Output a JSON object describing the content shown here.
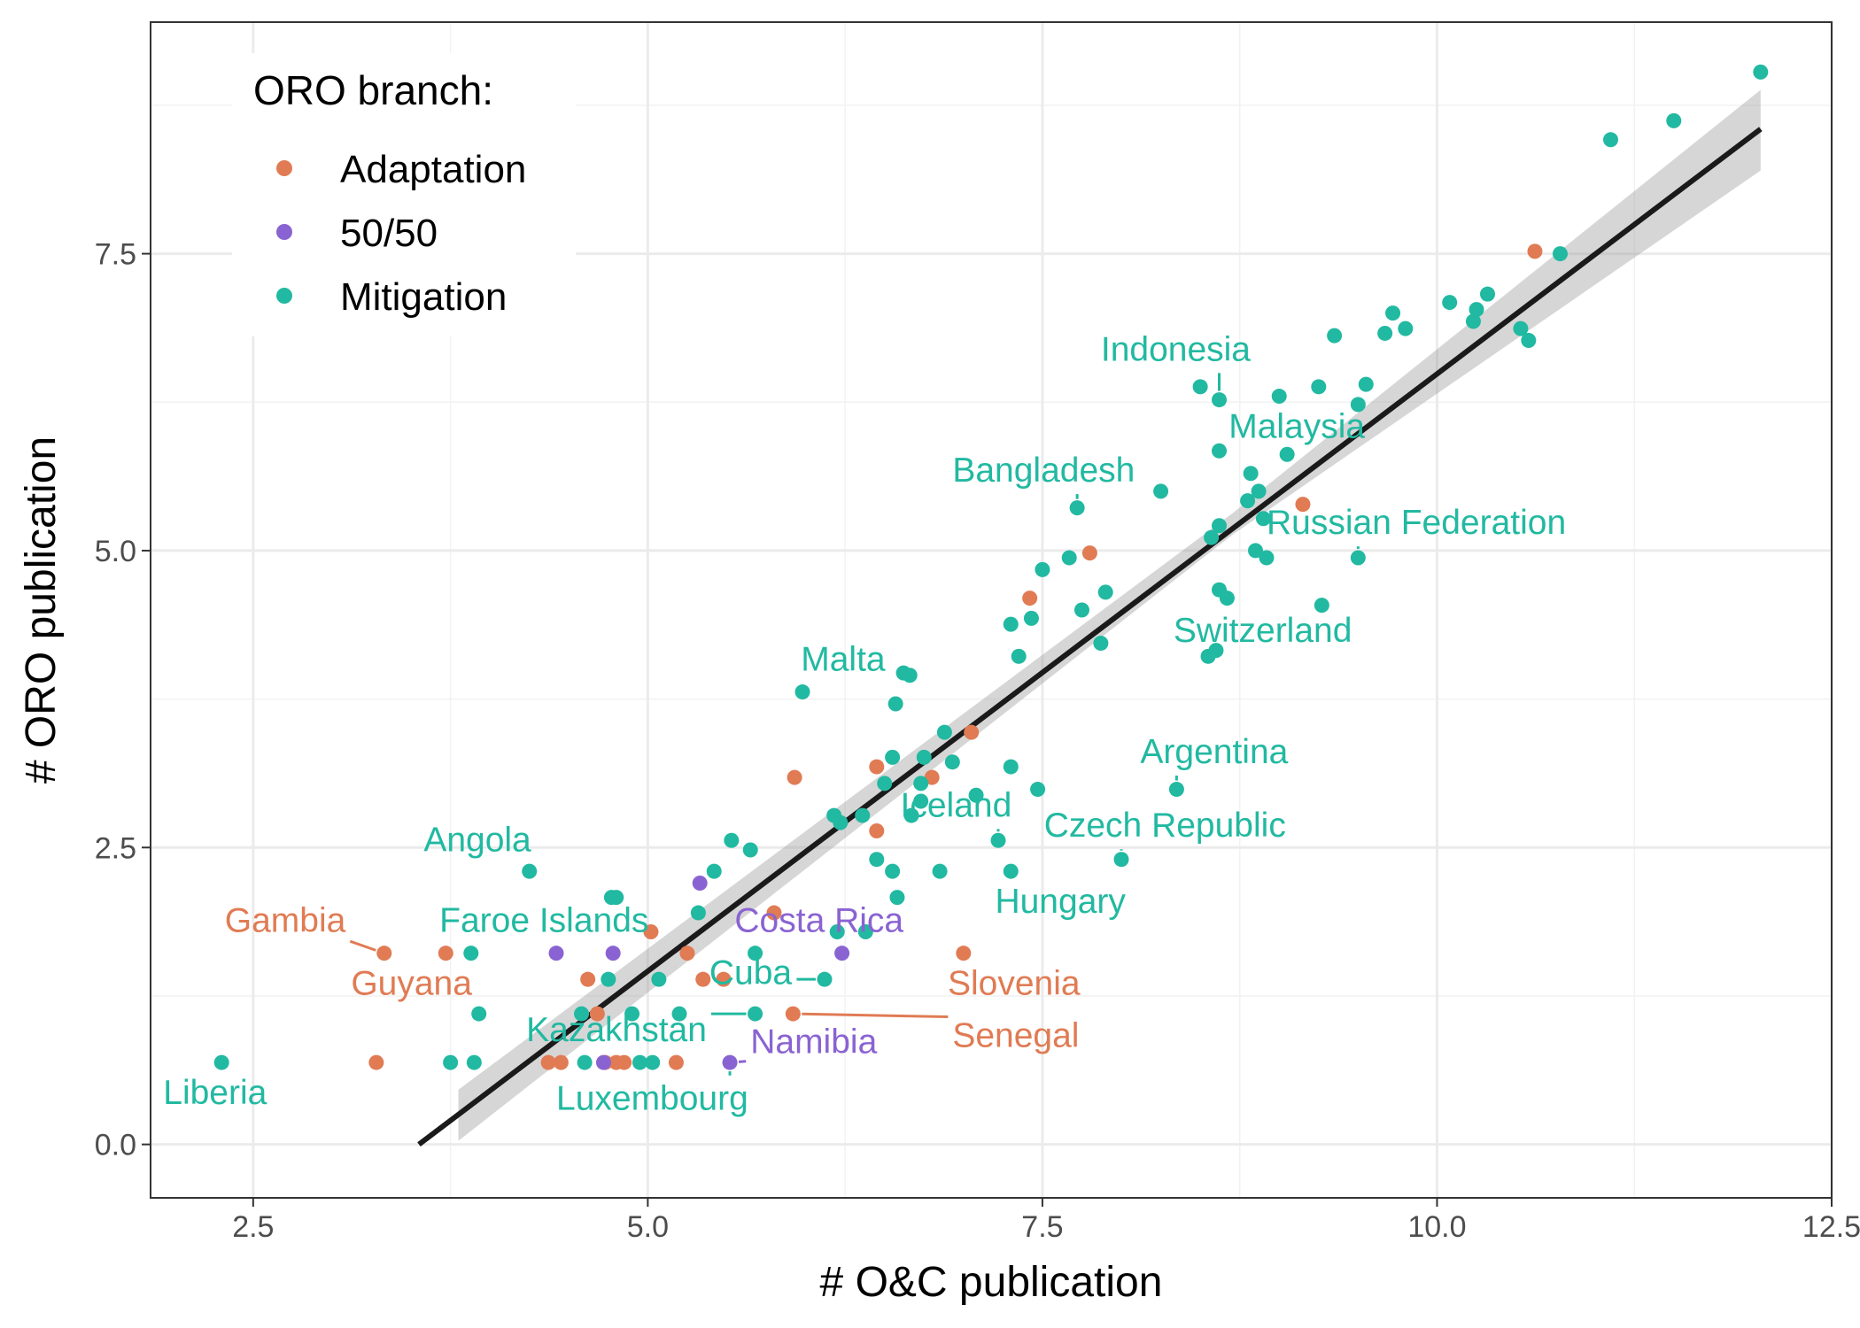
{
  "chart_data": {
    "type": "scatter",
    "xlabel": "# O&C publication",
    "ylabel": "# ORO publication",
    "xlim": [
      1.85,
      12.5
    ],
    "ylim": [
      -0.45,
      9.45
    ],
    "x_ticks": [
      {
        "v": 2.5,
        "label": "2.5"
      },
      {
        "v": 5.0,
        "label": "5.0"
      },
      {
        "v": 7.5,
        "label": "7.5"
      },
      {
        "v": 10.0,
        "label": "10.0"
      },
      {
        "v": 12.5,
        "label": "12.5"
      }
    ],
    "y_ticks": [
      {
        "v": 0.0,
        "label": "0.0"
      },
      {
        "v": 2.5,
        "label": "2.5"
      },
      {
        "v": 5.0,
        "label": "5.0"
      },
      {
        "v": 7.5,
        "label": "7.5"
      }
    ],
    "x_minor": [
      3.75,
      6.25,
      8.75,
      11.25
    ],
    "y_minor": [
      1.25,
      3.75,
      6.25,
      8.75
    ],
    "grid": true,
    "legend": {
      "title": "ORO branch:",
      "position": "top-left",
      "entries": [
        {
          "label": "Adaptation",
          "color": "#E07B54"
        },
        {
          "label": "50/50",
          "color": "#8A63D2"
        },
        {
          "label": "Mitigation",
          "color": "#21B9A1"
        }
      ]
    },
    "fit": {
      "type": "linear",
      "x_range": [
        3.55,
        12.05
      ],
      "y_range": [
        0.0,
        8.55
      ],
      "band": [
        [
          3.8,
          0.03,
          0.46
        ],
        [
          8.7,
          5.13,
          5.31
        ],
        [
          12.05,
          8.2,
          8.88
        ]
      ]
    },
    "series": [
      {
        "name": "Adaptation",
        "color": "#E07B54",
        "points": [
          [
            3.28,
            0.69
          ],
          [
            3.33,
            1.61
          ],
          [
            3.72,
            1.61
          ],
          [
            4.37,
            0.69
          ],
          [
            4.45,
            0.69
          ],
          [
            4.62,
            1.39
          ],
          [
            4.68,
            1.1
          ],
          [
            4.73,
            0.69
          ],
          [
            4.8,
            0.69
          ],
          [
            4.85,
            0.69
          ],
          [
            5.02,
            1.79
          ],
          [
            5.18,
            0.69
          ],
          [
            5.25,
            1.61
          ],
          [
            5.35,
            1.39
          ],
          [
            5.48,
            1.39
          ],
          [
            5.8,
            1.95
          ],
          [
            5.92,
            1.1
          ],
          [
            5.93,
            3.09
          ],
          [
            6.45,
            3.18
          ],
          [
            6.45,
            2.64
          ],
          [
            6.8,
            3.09
          ],
          [
            7.0,
            1.61
          ],
          [
            7.05,
            3.47
          ],
          [
            7.42,
            4.6
          ],
          [
            7.8,
            4.98
          ],
          [
            9.15,
            5.39
          ],
          [
            10.62,
            7.52
          ]
        ]
      },
      {
        "name": "50/50",
        "color": "#8A63D2",
        "points": [
          [
            4.42,
            1.61
          ],
          [
            4.72,
            0.69
          ],
          [
            4.78,
            1.61
          ],
          [
            5.33,
            2.2
          ],
          [
            5.52,
            0.69
          ],
          [
            6.23,
            1.61
          ]
        ]
      },
      {
        "name": "Mitigation",
        "color": "#21B9A1",
        "points": [
          [
            2.3,
            0.69
          ],
          [
            3.75,
            0.69
          ],
          [
            3.88,
            1.61
          ],
          [
            3.9,
            0.69
          ],
          [
            3.93,
            1.1
          ],
          [
            4.25,
            2.3
          ],
          [
            4.58,
            1.1
          ],
          [
            4.6,
            0.69
          ],
          [
            4.75,
            1.39
          ],
          [
            4.77,
            2.08
          ],
          [
            4.8,
            2.08
          ],
          [
            4.9,
            1.1
          ],
          [
            4.95,
            0.69
          ],
          [
            5.03,
            0.69
          ],
          [
            5.07,
            1.39
          ],
          [
            5.2,
            1.1
          ],
          [
            5.32,
            1.95
          ],
          [
            5.42,
            2.3
          ],
          [
            5.53,
            2.56
          ],
          [
            5.65,
            2.48
          ],
          [
            5.68,
            1.61
          ],
          [
            5.68,
            1.1
          ],
          [
            5.98,
            3.81
          ],
          [
            6.12,
            1.39
          ],
          [
            6.18,
            2.77
          ],
          [
            6.22,
            2.71
          ],
          [
            6.36,
            2.77
          ],
          [
            6.38,
            1.79
          ],
          [
            6.2,
            1.79
          ],
          [
            6.45,
            2.4
          ],
          [
            6.5,
            3.04
          ],
          [
            6.55,
            3.26
          ],
          [
            6.55,
            2.3
          ],
          [
            6.57,
            3.71
          ],
          [
            6.58,
            2.08
          ],
          [
            6.62,
            3.97
          ],
          [
            6.66,
            3.95
          ],
          [
            6.67,
            2.77
          ],
          [
            6.73,
            2.89
          ],
          [
            6.73,
            3.04
          ],
          [
            6.75,
            3.26
          ],
          [
            6.85,
            2.3
          ],
          [
            6.88,
            3.47
          ],
          [
            6.93,
            3.22
          ],
          [
            7.08,
            2.94
          ],
          [
            7.22,
            2.56
          ],
          [
            7.3,
            3.18
          ],
          [
            7.3,
            2.3
          ],
          [
            7.3,
            4.38
          ],
          [
            7.35,
            4.11
          ],
          [
            7.43,
            4.43
          ],
          [
            7.47,
            2.99
          ],
          [
            7.5,
            4.84
          ],
          [
            7.67,
            4.94
          ],
          [
            7.72,
            5.36
          ],
          [
            7.75,
            4.5
          ],
          [
            7.87,
            4.22
          ],
          [
            7.9,
            4.65
          ],
          [
            8.0,
            2.4
          ],
          [
            8.25,
            5.5
          ],
          [
            8.35,
            2.99
          ],
          [
            8.5,
            6.38
          ],
          [
            8.55,
            4.11
          ],
          [
            8.57,
            5.11
          ],
          [
            8.6,
            4.16
          ],
          [
            8.62,
            6.27
          ],
          [
            8.62,
            5.84
          ],
          [
            8.62,
            5.21
          ],
          [
            8.62,
            4.67
          ],
          [
            8.67,
            4.6
          ],
          [
            8.8,
            5.42
          ],
          [
            8.82,
            5.65
          ],
          [
            8.85,
            5.0
          ],
          [
            8.87,
            5.5
          ],
          [
            8.9,
            5.27
          ],
          [
            8.92,
            4.94
          ],
          [
            9.0,
            6.3
          ],
          [
            9.05,
            5.81
          ],
          [
            9.27,
            4.54
          ],
          [
            9.25,
            6.38
          ],
          [
            9.35,
            6.81
          ],
          [
            9.5,
            4.94
          ],
          [
            9.5,
            6.23
          ],
          [
            9.55,
            6.4
          ],
          [
            9.67,
            6.83
          ],
          [
            9.72,
            7.0
          ],
          [
            9.8,
            6.87
          ],
          [
            10.08,
            7.09
          ],
          [
            10.23,
            6.93
          ],
          [
            10.25,
            7.03
          ],
          [
            10.32,
            7.16
          ],
          [
            10.53,
            6.87
          ],
          [
            10.58,
            6.77
          ],
          [
            10.78,
            7.5
          ],
          [
            11.1,
            8.46
          ],
          [
            11.5,
            8.62
          ],
          [
            12.05,
            9.03
          ]
        ]
      }
    ],
    "annotations": [
      {
        "text": "Indonesia",
        "series": "Mitigation",
        "tx": 7.87,
        "ty": 6.6,
        "px": 8.62,
        "py": 6.27
      },
      {
        "text": "Malaysia",
        "series": "Mitigation",
        "tx": 8.68,
        "ty": 5.95,
        "px": 9.05,
        "py": 5.81
      },
      {
        "text": "Bangladesh",
        "series": "Mitigation",
        "tx": 6.93,
        "ty": 5.58,
        "px": 7.72,
        "py": 5.36
      },
      {
        "text": "Russian Federation",
        "series": "Mitigation",
        "tx": 8.92,
        "ty": 5.14,
        "px": 9.5,
        "py": 4.94
      },
      {
        "text": "Switzerland",
        "series": "Mitigation",
        "tx": 8.33,
        "ty": 4.23,
        "px": 9.27,
        "py": 4.54
      },
      {
        "text": "Malta",
        "series": "Mitigation",
        "tx": 5.97,
        "ty": 3.99,
        "px": 5.98,
        "py": 3.81
      },
      {
        "text": "Argentina",
        "series": "Mitigation",
        "tx": 8.12,
        "ty": 3.21,
        "px": 8.35,
        "py": 2.99
      },
      {
        "text": "Iceland",
        "series": "Mitigation",
        "tx": 6.6,
        "ty": 2.76,
        "px": 7.22,
        "py": 2.56
      },
      {
        "text": "Czech Republic",
        "series": "Mitigation",
        "tx": 7.51,
        "ty": 2.59,
        "px": 8.0,
        "py": 2.4
      },
      {
        "text": "Hungary",
        "series": "Mitigation",
        "tx": 7.2,
        "ty": 1.95,
        "px": 7.3,
        "py": 2.3
      },
      {
        "text": "Angola",
        "series": "Mitigation",
        "tx": 3.58,
        "ty": 2.47,
        "px": 4.25,
        "py": 2.3
      },
      {
        "text": "Gambia",
        "series": "Adaptation",
        "tx": 2.32,
        "ty": 1.79,
        "px": 3.33,
        "py": 1.61
      },
      {
        "text": "Faroe Islands",
        "series": "Mitigation",
        "tx": 3.68,
        "ty": 1.79,
        "px": 3.88,
        "py": 1.61
      },
      {
        "text": "Costa Rica",
        "series": "50/50",
        "tx": 5.55,
        "ty": 1.79,
        "px": 6.23,
        "py": 1.61
      },
      {
        "text": "Guyana",
        "series": "Adaptation",
        "tx": 3.12,
        "ty": 1.26,
        "px": 3.72,
        "py": 1.61
      },
      {
        "text": "Cuba",
        "series": "Mitigation",
        "tx": 5.39,
        "ty": 1.35,
        "px": 6.12,
        "py": 1.39
      },
      {
        "text": "Slovenia",
        "series": "Adaptation",
        "tx": 6.9,
        "ty": 1.26,
        "px": 7.0,
        "py": 1.61
      },
      {
        "text": "Senegal",
        "series": "Adaptation",
        "tx": 6.93,
        "ty": 0.82,
        "px": 5.92,
        "py": 1.1
      },
      {
        "text": "Kazakhstan",
        "series": "Mitigation",
        "tx": 4.23,
        "ty": 0.87,
        "px": 5.68,
        "py": 1.1
      },
      {
        "text": "Namibia",
        "series": "50/50",
        "tx": 5.65,
        "ty": 0.77,
        "px": 5.52,
        "py": 0.69
      },
      {
        "text": "Luxembourg",
        "series": "Mitigation",
        "tx": 4.42,
        "ty": 0.29,
        "px": 5.52,
        "py": 0.69
      },
      {
        "text": "Liberia",
        "series": "Mitigation",
        "tx": 1.93,
        "ty": 0.34,
        "px": 2.3,
        "py": 0.69
      }
    ]
  }
}
